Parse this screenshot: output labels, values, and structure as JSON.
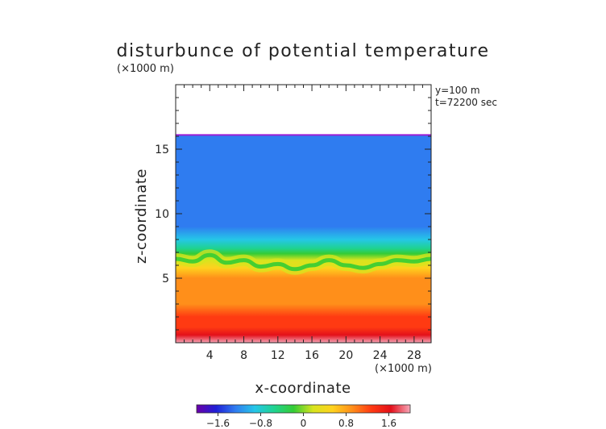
{
  "chart_data": {
    "type": "heatmap",
    "title": "disturbunce of potential temperature",
    "xlabel": "x-coordinate",
    "ylabel": "z-coordinate",
    "x_unit": "(×1000 m)",
    "y_unit": "(×1000 m)",
    "annotations": [
      "y=100 m",
      "t=72200 sec"
    ],
    "xlim": [
      0,
      30
    ],
    "ylim": [
      0,
      20
    ],
    "xticks": [
      4,
      8,
      12,
      16,
      20,
      24,
      28
    ],
    "yticks": [
      5,
      10,
      15
    ],
    "data_top_z": 16.1,
    "colorbar": {
      "range": [
        -2.0,
        2.0
      ],
      "ticks": [
        -1.6,
        -0.8,
        0,
        0.8,
        1.6
      ],
      "tick_labels": [
        "−1.6",
        "−0.8",
        "0",
        "0.8",
        "1.6"
      ],
      "colors": [
        "#6a00a8",
        "#1f1fd6",
        "#2f7cf0",
        "#25c6e8",
        "#1fd38f",
        "#35cc35",
        "#d8e41e",
        "#ffd21e",
        "#ff8f1a",
        "#ff3a12",
        "#e3101a",
        "#f6a6b8"
      ]
    },
    "profile": {
      "z": [
        0.0,
        0.6,
        1.2,
        2.0,
        3.0,
        4.0,
        5.0,
        5.8,
        6.4,
        6.9,
        7.3,
        8.0,
        9.0,
        10.5,
        12.0,
        14.0,
        15.5,
        16.1
      ],
      "value": [
        1.85,
        1.55,
        1.3,
        1.1,
        0.98,
        0.9,
        0.78,
        0.55,
        0.15,
        -0.35,
        -0.7,
        -1.0,
        -1.15,
        -1.2,
        -1.25,
        -1.25,
        -1.3,
        -1.45
      ]
    },
    "interface": {
      "x": [
        0,
        2,
        4,
        6,
        8,
        10,
        12,
        14,
        16,
        18,
        20,
        22,
        24,
        26,
        28,
        30
      ],
      "z": [
        6.5,
        6.3,
        6.8,
        6.2,
        6.4,
        5.9,
        6.1,
        5.7,
        6.0,
        6.4,
        6.0,
        5.8,
        6.1,
        6.4,
        6.3,
        6.5
      ]
    }
  }
}
